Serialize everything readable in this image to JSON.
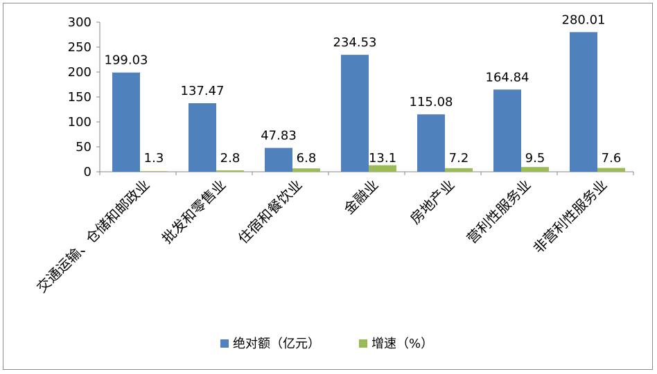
{
  "chart_data": {
    "type": "bar",
    "categories": [
      "交通运输、仓储和邮政业",
      "批发和零售业",
      "住宿和餐饮业",
      "金融业",
      "房地产业",
      "营利性服务业",
      "非营利性服务业"
    ],
    "series": [
      {
        "name": "绝对额（亿元）",
        "values": [
          199.03,
          137.47,
          47.83,
          234.53,
          115.08,
          164.84,
          280.01
        ],
        "labels": [
          "199.03",
          "137.47",
          "47.83",
          "234.53",
          "115.08",
          "164.84",
          "280.01"
        ],
        "color": "#4f81bd"
      },
      {
        "name": "增速（%）",
        "values": [
          1.3,
          2.8,
          6.8,
          13.1,
          7.2,
          9.5,
          7.6
        ],
        "labels": [
          "1.3",
          "2.8",
          "6.8",
          "13.1",
          "7.2",
          "9.5",
          "7.6"
        ],
        "color": "#9bbb59"
      }
    ],
    "yticks": [
      "0",
      "50",
      "100",
      "150",
      "200",
      "250",
      "300"
    ],
    "ylim": [
      0,
      300
    ],
    "grid": false,
    "legend_position": "bottom",
    "title": "",
    "xlabel": "",
    "ylabel": ""
  }
}
